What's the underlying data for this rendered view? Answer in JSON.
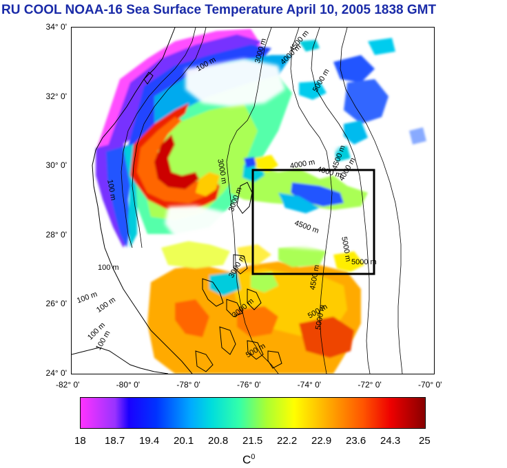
{
  "title": "RU COOL  NOAA-16 Sea Surface Temperature April 10, 2005 1838 GMT",
  "map": {
    "lat_ticks": [
      "34° 0'",
      "32° 0'",
      "30° 0'",
      "28° 0'",
      "26° 0'",
      "24° 0'"
    ],
    "lon_ticks": [
      "-82° 0'",
      "-80° 0'",
      "-78° 0'",
      "-76° 0'",
      "-74° 0'",
      "-72° 0'",
      "-70° 0'"
    ],
    "lat_range": [
      24,
      34
    ],
    "lon_range": [
      -82,
      -70
    ],
    "study_box": {
      "lon": [
        -76,
        -72
      ],
      "lat": [
        27,
        30
      ]
    },
    "contour_labels": [
      "100 m",
      "100 m",
      "100 m",
      "100 m",
      "100 m",
      "100 m",
      "100 m",
      "3000 m",
      "3000 m",
      "3000 m",
      "3000 m",
      "3000 m",
      "4000 m",
      "4000 m",
      "4500 m",
      "4500 m",
      "4500 m",
      "5000 m",
      "5000 m",
      "5000 m",
      "5000 m",
      "4000 m",
      "4500 m",
      "4000 m",
      "500 m",
      "500 m"
    ]
  },
  "colorbar": {
    "tick_labels": [
      "18",
      "18.7",
      "19.4",
      "20.1",
      "20.8",
      "21.5",
      "22.2",
      "22.9",
      "23.6",
      "24.3",
      "25"
    ],
    "range": [
      18,
      25
    ],
    "unit": "C",
    "unit_sup": "0"
  },
  "colors": {
    "title": "#1a2ba8",
    "box": "#000000"
  }
}
